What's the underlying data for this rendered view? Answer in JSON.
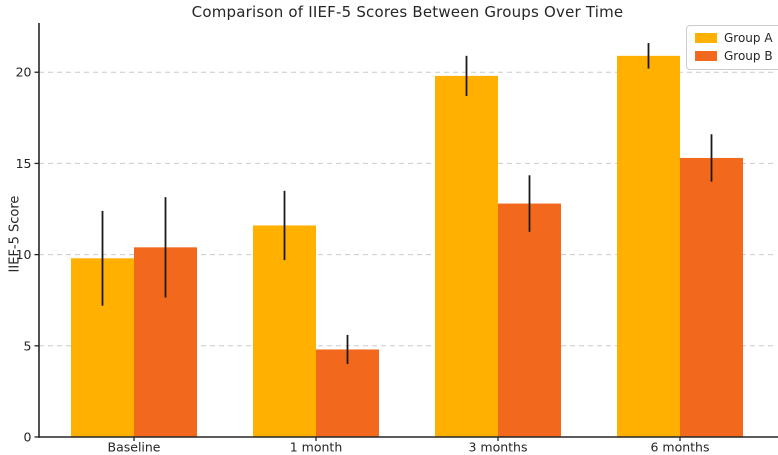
{
  "title": "Comparison of IIEF-5 Scores Between Groups Over Time",
  "colors": {
    "group_a": "#FFB000",
    "group_b": "#F2691E",
    "error_bar": "#1a1a1a",
    "axis": "#262626",
    "grid": "#cccccc",
    "text": "#262626",
    "legend_border": "#cccccc",
    "background": "#ffffff"
  },
  "chart_data": {
    "type": "bar",
    "title": "Comparison of IIEF-5 Scores Between Groups Over Time",
    "xlabel": "",
    "ylabel": "IIEF-5 Score",
    "categories": [
      "Baseline",
      "1 month",
      "3 months",
      "6 months"
    ],
    "series": [
      {
        "name": "Group A",
        "color": "#FFB000",
        "values": [
          9.8,
          11.6,
          19.8,
          20.9
        ],
        "errors": [
          2.6,
          1.9,
          1.1,
          0.7
        ]
      },
      {
        "name": "Group B",
        "color": "#F2691E",
        "values": [
          10.4,
          4.8,
          12.8,
          15.3
        ],
        "errors": [
          2.75,
          0.8,
          1.55,
          1.3
        ]
      }
    ],
    "ylim": [
      0,
      22.7
    ],
    "yticks": [
      0,
      5,
      10,
      15,
      20
    ],
    "grid": "horizontal-dashed",
    "legend_position": "upper-right",
    "error_bars": true
  },
  "legend": {
    "items": [
      {
        "label": "Group A"
      },
      {
        "label": "Group B"
      }
    ]
  }
}
